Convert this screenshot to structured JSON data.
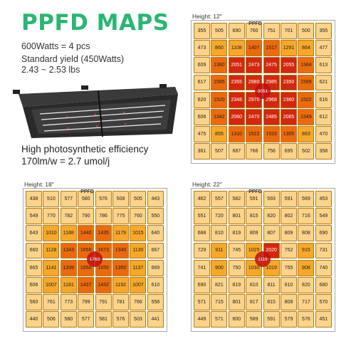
{
  "title": "PPFD MAPS",
  "specs": [
    "600Watts = 4 pcs",
    "Standard yield (450Watts)",
    "2.43 ~ 2.53 lbs"
  ],
  "efficiency": [
    "High photosynthetic efficiency",
    "170lm/w = 2.7 umol/j"
  ],
  "maps": [
    {
      "height_label": "Height: 12\"",
      "header": "PPFD",
      "center": "3051",
      "rows": [
        [
          355,
          505,
          690,
          760,
          751,
          701,
          500,
          355
        ],
        [
          473,
          860,
          1108,
          1407,
          1517,
          1291,
          864,
          477
        ],
        [
          609,
          1380,
          2051,
          2473,
          2475,
          2055,
          1384,
          613
        ],
        [
          617,
          1585,
          2355,
          2980,
          2985,
          2350,
          1589,
          621
        ],
        [
          620,
          1520,
          2348,
          2970,
          2968,
          2360,
          1522,
          616
        ],
        [
          606,
          1342,
          2060,
          2470,
          2485,
          2065,
          1349,
          612
        ],
        [
          475,
          855,
          1310,
          1522,
          1533,
          1305,
          863,
          470
        ],
        [
          361,
          507,
          687,
          766,
          756,
          695,
          502,
          358
        ]
      ]
    },
    {
      "height_label": "Height: 18\"",
      "header": "PPFD",
      "center": "1763",
      "rows": [
        [
          438,
          510,
          577,
          580,
          576,
          508,
          505,
          443
        ],
        [
          549,
          770,
          782,
          790,
          786,
          775,
          760,
          550
        ],
        [
          643,
          1010,
          1188,
          1440,
          1435,
          1179,
          1015,
          640
        ],
        [
          660,
          1128,
          1343,
          1656,
          1673,
          1340,
          1130,
          667
        ],
        [
          665,
          1141,
          1339,
          1650,
          1655,
          1350,
          1137,
          669
        ],
        [
          606,
          1007,
          1181,
          1437,
          1432,
          1192,
          1007,
          610
        ],
        [
          560,
          761,
          773,
          799,
          791,
          781,
          766,
          558
        ],
        [
          440,
          506,
          580,
          577,
          581,
          576,
          503,
          441
        ]
      ]
    },
    {
      "height_label": "Height: 22\"",
      "header": "PPFD",
      "center": "1119",
      "rows": [
        [
          462,
          557,
          582,
          591,
          593,
          591,
          569,
          453
        ],
        [
          551,
          720,
          801,
          815,
          820,
          802,
          716,
          549
        ],
        [
          688,
          810,
          819,
          809,
          807,
          809,
          808,
          690
        ],
        [
          729,
          911,
          745,
          1025,
          2020,
          752,
          915,
          731
        ],
        [
          741,
          900,
          750,
          1030,
          1019,
          755,
          908,
          740
        ],
        [
          690,
          821,
          819,
          810,
          811,
          810,
          820,
          680
        ],
        [
          571,
          715,
          801,
          817,
          815,
          808,
          717,
          570
        ],
        [
          449,
          571,
          600,
          589,
          591,
          579,
          576,
          451
        ]
      ]
    }
  ],
  "colors": {
    "title": "#2bb673",
    "low": "#fbd38a",
    "mid": "#f7a829",
    "high": "#ec6a0e",
    "peak": "#d2280f",
    "center_dot": "#c01010"
  }
}
